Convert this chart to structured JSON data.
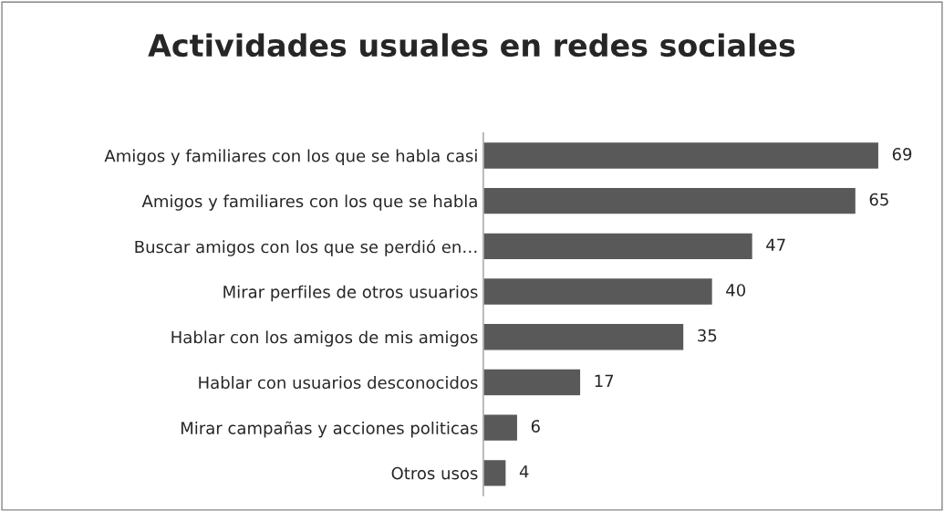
{
  "chart_data": {
    "type": "bar",
    "orientation": "horizontal",
    "title": "Actividades usuales en redes sociales",
    "categories": [
      "Amigos y familiares con los que se habla casi",
      "Amigos y familiares con los que se habla",
      "Buscar amigos con los que se perdió en…",
      "Mirar perfiles de otros usuarios",
      "Hablar con los amigos de mis amigos",
      "Hablar con usuarios desconocidos",
      "Mirar campañas y acciones politicas",
      "Otros usos"
    ],
    "values": [
      69,
      65,
      47,
      40,
      35,
      17,
      6,
      4
    ],
    "color": "#595959",
    "data_labels": true,
    "grid": false,
    "legend": false
  }
}
